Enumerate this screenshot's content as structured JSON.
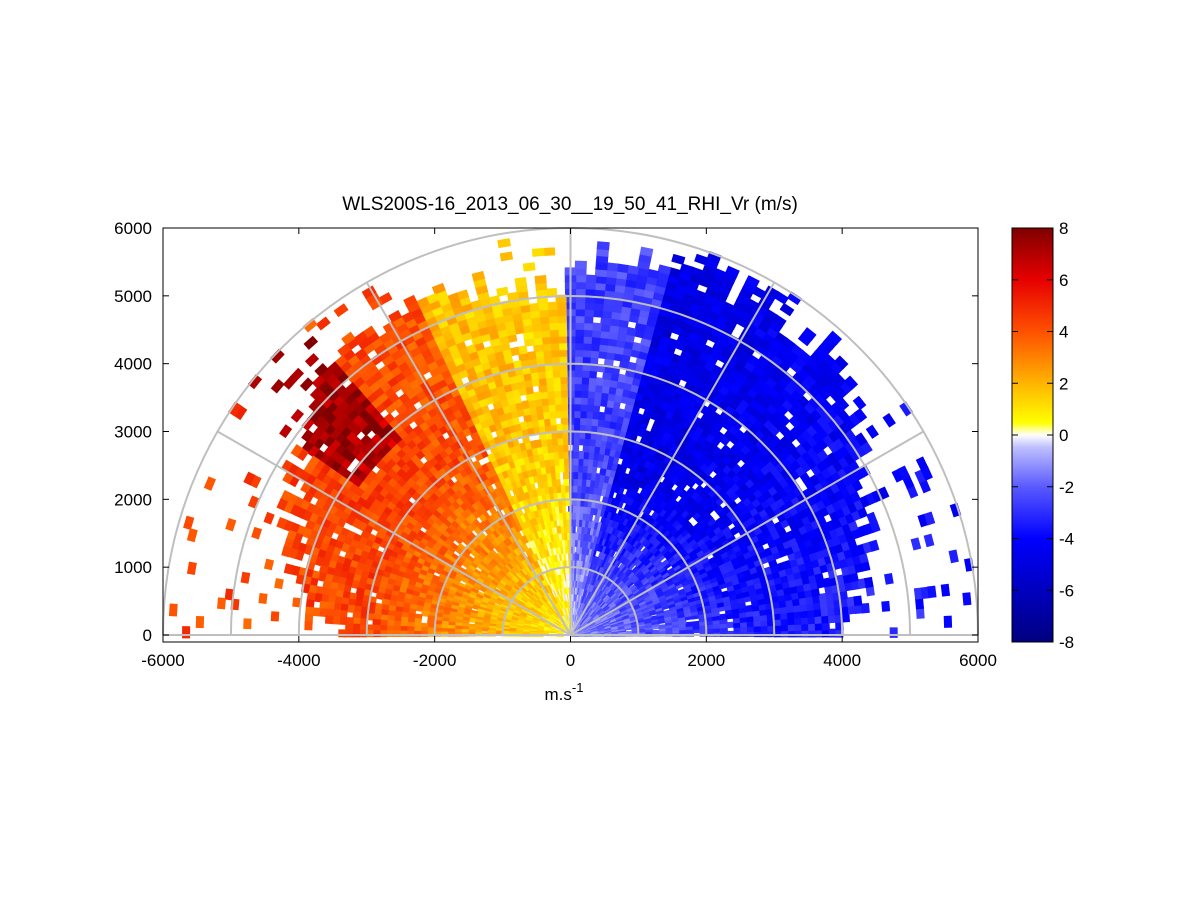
{
  "chart_data": {
    "type": "heatmap",
    "subtype": "polar-rhi-scan",
    "title": "WLS200S-16_2013_06_30__19_50_41_RHI_Vr (m/s)",
    "xlabel": "m.s",
    "xlabel_superscript": "-1",
    "ylabel": "",
    "xlim": [
      -6000,
      6000
    ],
    "ylim": [
      0,
      6000
    ],
    "xticks": [
      "-6000",
      "-4000",
      "-2000",
      "0",
      "2000",
      "4000",
      "6000"
    ],
    "yticks": [
      "0",
      "1000",
      "2000",
      "3000",
      "4000",
      "5000",
      "6000"
    ],
    "polar_grid": {
      "range_rings": [
        1000,
        2000,
        3000,
        4000,
        5000,
        6000
      ],
      "azimuth_spokes_deg": [
        0,
        30,
        60,
        90,
        120,
        150,
        180
      ]
    },
    "colorbar": {
      "min": -8,
      "max": 8,
      "ticks": [
        "-8",
        "-6",
        "-4",
        "-2",
        "0",
        "2",
        "4",
        "6",
        "8"
      ],
      "negative_color": "#0000ff",
      "positive_color": "#ff0000",
      "zero_color": "#ffffff"
    },
    "velocity_field": {
      "units": "m/s",
      "description_sectors": [
        {
          "angle_from_deg": 0,
          "angle_to_deg": 90,
          "side": "right",
          "typical_vr": -4,
          "max_range_m": 6000
        },
        {
          "angle_from_deg": 90,
          "angle_to_deg": 180,
          "side": "left",
          "typical_vr": 3,
          "max_range_m": 6000
        }
      ]
    }
  }
}
